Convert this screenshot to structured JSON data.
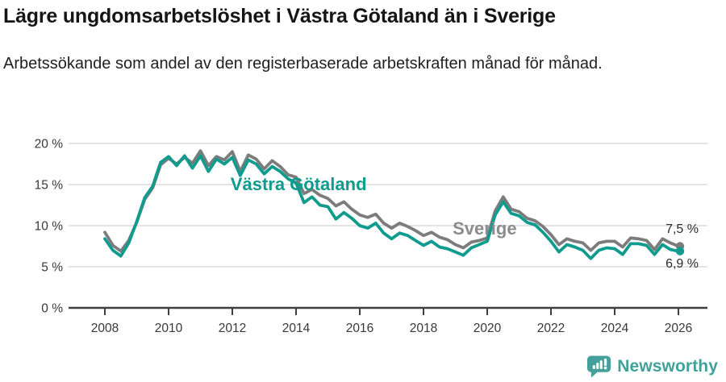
{
  "header": {
    "title": "Lägre ungdomsarbetslöshet i Västra Götaland än i Sverige",
    "subtitle": "Arbetssökande som andel av den registerbaserade arbetskraften månad för månad."
  },
  "colors": {
    "vastra_gotaland": "#0f9b8d",
    "sverige": "#7c7c7c",
    "sverige_label": "#8c8c8c",
    "gridline": "#dadada",
    "axis": "#3f3f3f",
    "tick_text": "#383838",
    "end_label_text": "#2b2b2b",
    "brand_teal": "#45a09b"
  },
  "chart_data": {
    "type": "line",
    "title": "Lägre ungdomsarbetslöshet i Västra Götaland än i Sverige",
    "xlabel": "",
    "ylabel": "",
    "x_unit": "year",
    "ylim": [
      0,
      20
    ],
    "xlim": [
      2008,
      2026.1
    ],
    "grid": "horizontal",
    "legend": "inline-labels",
    "x": [
      2008.0,
      2008.25,
      2008.5,
      2008.75,
      2009.0,
      2009.25,
      2009.5,
      2009.75,
      2010.0,
      2010.25,
      2010.5,
      2010.75,
      2011.0,
      2011.25,
      2011.5,
      2011.75,
      2012.0,
      2012.25,
      2012.5,
      2012.75,
      2013.0,
      2013.25,
      2013.5,
      2013.75,
      2014.0,
      2014.25,
      2014.5,
      2014.75,
      2015.0,
      2015.25,
      2015.5,
      2015.75,
      2016.0,
      2016.25,
      2016.5,
      2016.75,
      2017.0,
      2017.25,
      2017.5,
      2017.75,
      2018.0,
      2018.25,
      2018.5,
      2018.75,
      2019.0,
      2019.25,
      2019.5,
      2019.75,
      2020.0,
      2020.25,
      2020.5,
      2020.75,
      2021.0,
      2021.25,
      2021.5,
      2021.75,
      2022.0,
      2022.25,
      2022.5,
      2022.75,
      2023.0,
      2023.25,
      2023.5,
      2023.75,
      2024.0,
      2024.25,
      2024.5,
      2024.75,
      2025.0,
      2025.25,
      2025.5,
      2025.75,
      2026.0
    ],
    "series": [
      {
        "name": "Sverige",
        "color": "#7c7c7c",
        "end_label": "7,5 %",
        "end_value": 7.5,
        "values": [
          9.2,
          7.6,
          6.9,
          8.2,
          10.4,
          13.2,
          14.6,
          17.4,
          18.2,
          17.5,
          18.3,
          17.6,
          19.1,
          17.3,
          18.4,
          18.0,
          19.0,
          16.6,
          18.6,
          18.1,
          16.9,
          17.9,
          17.2,
          16.2,
          15.9,
          13.9,
          14.4,
          13.7,
          13.3,
          12.4,
          12.9,
          12.0,
          11.3,
          11.0,
          11.4,
          10.3,
          9.7,
          10.3,
          9.9,
          9.4,
          8.8,
          9.2,
          8.6,
          8.3,
          7.7,
          7.3,
          8.0,
          8.2,
          8.5,
          11.8,
          13.5,
          12.0,
          11.7,
          10.9,
          10.6,
          9.9,
          8.9,
          7.7,
          8.4,
          8.1,
          7.9,
          7.0,
          7.9,
          8.1,
          8.1,
          7.4,
          8.5,
          8.4,
          8.2,
          7.1,
          8.4,
          7.9,
          7.5
        ]
      },
      {
        "name": "Västra Götaland",
        "color": "#0f9b8d",
        "end_label": "6,9 %",
        "end_value": 6.9,
        "values": [
          8.4,
          7.0,
          6.3,
          7.9,
          10.5,
          13.4,
          14.8,
          17.7,
          18.4,
          17.3,
          18.5,
          17.0,
          18.5,
          16.6,
          18.1,
          17.5,
          18.3,
          16.1,
          18.0,
          17.5,
          16.3,
          17.2,
          16.6,
          15.7,
          15.2,
          12.8,
          13.5,
          12.5,
          12.3,
          10.8,
          11.6,
          10.9,
          10.0,
          9.7,
          10.3,
          9.1,
          8.4,
          9.1,
          8.8,
          8.2,
          7.6,
          8.1,
          7.4,
          7.2,
          6.8,
          6.4,
          7.3,
          7.7,
          8.1,
          11.3,
          12.9,
          11.5,
          11.2,
          10.4,
          10.1,
          9.2,
          8.1,
          6.8,
          7.7,
          7.4,
          7.0,
          6.0,
          7.0,
          7.3,
          7.2,
          6.5,
          7.8,
          7.8,
          7.6,
          6.5,
          7.7,
          7.1,
          6.9
        ]
      }
    ],
    "y_ticks": [
      {
        "value": 0,
        "label": "0 %"
      },
      {
        "value": 5,
        "label": "5 %"
      },
      {
        "value": 10,
        "label": "10 %"
      },
      {
        "value": 15,
        "label": "15 %"
      },
      {
        "value": 20,
        "label": "20 %"
      }
    ],
    "x_ticks": [
      {
        "value": 2008,
        "label": "2008"
      },
      {
        "value": 2010,
        "label": "2010"
      },
      {
        "value": 2012,
        "label": "2012"
      },
      {
        "value": 2014,
        "label": "2014"
      },
      {
        "value": 2016,
        "label": "2016"
      },
      {
        "value": 2018,
        "label": "2018"
      },
      {
        "value": 2020,
        "label": "2020"
      },
      {
        "value": 2022,
        "label": "2022"
      },
      {
        "value": 2024,
        "label": "2024"
      },
      {
        "value": 2026,
        "label": "2026"
      }
    ],
    "series_labels": [
      {
        "text": "Västra Götaland",
        "x_year": 2014.08,
        "y_value": 14.3,
        "color": "#0f9b8d"
      },
      {
        "text": "Sverige",
        "x_year": 2019.92,
        "y_value": 8.9,
        "color": "#8c8c8c"
      }
    ],
    "end_labels": [
      {
        "text": "7,5 %",
        "x_year": 2026,
        "y_value": 9.1
      },
      {
        "text": "6,9 %",
        "x_year": 2026,
        "y_value": 4.9
      }
    ]
  },
  "footer": {
    "brand": "Newsworthy"
  }
}
